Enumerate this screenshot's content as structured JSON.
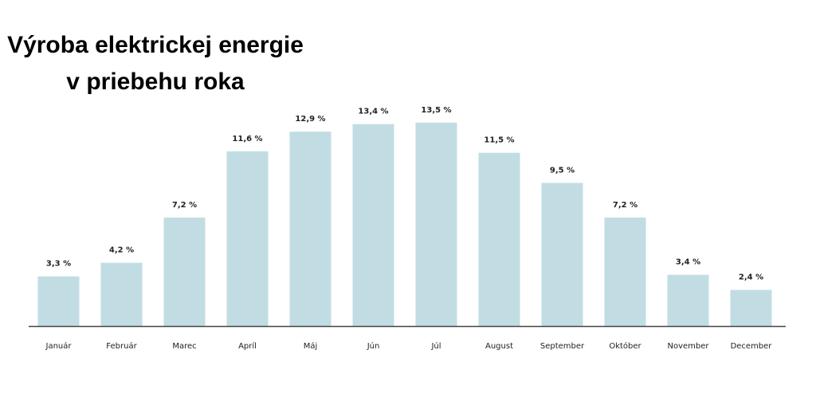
{
  "title": {
    "line1": "Výroba elektrickej energie",
    "line2": "v priebehu roka"
  },
  "colors": {
    "bar": "#c1dde3",
    "axis": "#444444",
    "text": "#222222"
  },
  "chart_data": {
    "type": "bar",
    "title": "Výroba elektrickej energie v priebehu roka",
    "categories": [
      "Január",
      "Február",
      "Marec",
      "Apríl",
      "Máj",
      "Jún",
      "Júl",
      "August",
      "September",
      "Október",
      "November",
      "December"
    ],
    "values": [
      3.3,
      4.2,
      7.2,
      11.6,
      12.9,
      13.4,
      13.5,
      11.5,
      9.5,
      7.2,
      3.4,
      2.4
    ],
    "value_labels": [
      "3,3 %",
      "4,2 %",
      "7,2 %",
      "11,6 %",
      "12,9 %",
      "13,4 %",
      "13,5 %",
      "11,5 %",
      "9,5 %",
      "7,2 %",
      "3,4 %",
      "2,4 %"
    ],
    "xlabel": "",
    "ylabel": "",
    "ylim": [
      0,
      14
    ],
    "grid": false,
    "legend": "none"
  }
}
